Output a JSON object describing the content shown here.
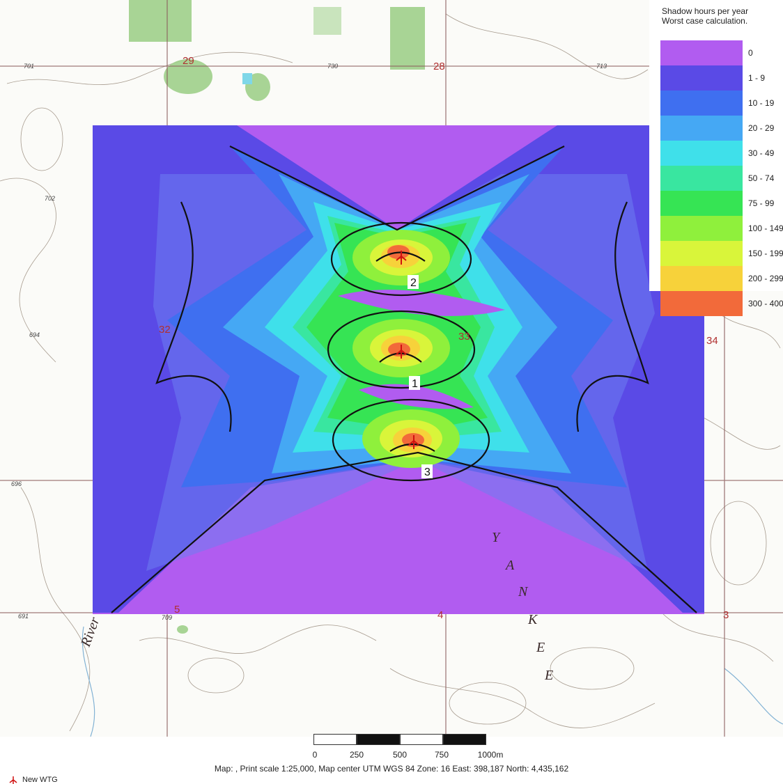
{
  "legend": {
    "title_line1": "Shadow hours per year",
    "title_line2": "Worst case calculation.",
    "classes": [
      {
        "label": "0",
        "color": "#b15cf0"
      },
      {
        "label": "1 - 9",
        "color": "#5a4ae6"
      },
      {
        "label": "10 - 19",
        "color": "#3f6ff0"
      },
      {
        "label": "20 - 29",
        "color": "#45a8f4"
      },
      {
        "label": "30 - 49",
        "color": "#3fe0ea"
      },
      {
        "label": "50 - 74",
        "color": "#39e6a0"
      },
      {
        "label": "75 - 99",
        "color": "#36e454"
      },
      {
        "label": "100 - 149",
        "color": "#8ff03c"
      },
      {
        "label": "150 - 199",
        "color": "#d9f53a"
      },
      {
        "label": "200 - 299",
        "color": "#f7d23a"
      },
      {
        "label": "300 - 400",
        "color": "#f26a3a"
      }
    ]
  },
  "turbines": [
    {
      "label": "2"
    },
    {
      "label": "1"
    },
    {
      "label": "3"
    }
  ],
  "section_labels": [
    "29",
    "28",
    "32",
    "33",
    "34",
    "5",
    "4",
    "3"
  ],
  "contour_labels": [
    "701",
    "730",
    "702",
    "694",
    "696",
    "691",
    "709",
    "713"
  ],
  "road_labels": {
    "river": "River",
    "yankee": [
      "Y",
      "A",
      "N",
      "K",
      "E",
      "E"
    ]
  },
  "scalebar": {
    "ticks": [
      "0",
      "250",
      "500",
      "750",
      "1000m"
    ]
  },
  "footer": {
    "caption": "Map:  , Print scale 1:25,000, Map center UTM WGS 84 Zone: 16  East: 398,187  North: 4,435,162",
    "legend_item": "New WTG"
  }
}
